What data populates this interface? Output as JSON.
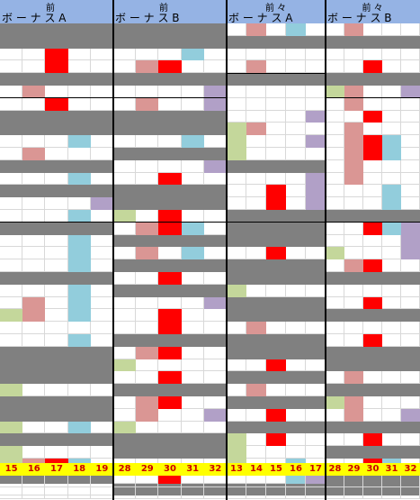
{
  "colors": {
    "header": "#95b3e4",
    "blank": "#ffffff",
    "gray": "#808080",
    "red": "#ff0000",
    "pink": "#da9694",
    "blue": "#92cddc",
    "purple": "#b1a0c7",
    "green": "#c4d79b",
    "yellow": "#ffff00",
    "grid": "#d8d8d8"
  },
  "panels": [
    {
      "top_label": "前",
      "bottom_label": "ボ ー ナ ス  A",
      "numbers": [
        "15",
        "16",
        "17",
        "18",
        "19"
      ]
    },
    {
      "top_label": "前",
      "bottom_label": "ボ ー ナ ス  B",
      "numbers": [
        "28",
        "29",
        "30",
        "31",
        "32"
      ]
    },
    {
      "top_label": "前 々",
      "bottom_label": "ボ ー ナ ス  A",
      "numbers": [
        "13",
        "14",
        "15",
        "16",
        "17"
      ]
    },
    {
      "top_label": "前 々",
      "bottom_label": "ボ ー ナ ス  B",
      "numbers": [
        "28",
        "29",
        "30",
        "31",
        "32"
      ]
    }
  ],
  "grid": [
    [
      "GGGGG",
      "GGGGG",
      "WPWBW",
      "WPWWW"
    ],
    [
      "GGGGG",
      "GGGGG",
      "GGGGG",
      "GGGGG"
    ],
    [
      "WWRWW",
      "WWWBW",
      "WWWWW",
      "WWWWW"
    ],
    [
      "WWRWW",
      "WPRWW",
      "WPWWW",
      "WWRWW"
    ],
    [
      "GGGGG",
      "GGGGG",
      "GGGGG",
      "GGGGG"
    ],
    [
      "WPWWW",
      "WWWWU",
      "WWWWW",
      "NPWWU"
    ],
    [
      "WWRWW",
      "WPWWU",
      "WWWWW",
      "WPWWW"
    ],
    [
      "GGGGG",
      "GGGGG",
      "WWWWU",
      "WWRWW"
    ],
    [
      "GGGGG",
      "GGGGG",
      "NPWWW",
      "WPWWW"
    ],
    [
      "WWWBW",
      "WWWBW",
      "NWWWU",
      "WPRBW"
    ],
    [
      "WPWWW",
      "GGGGG",
      "NWWWW",
      "WPRBW"
    ],
    [
      "GGGGG",
      "WWWWU",
      "GGGGG",
      "WPWWW"
    ],
    [
      "WWWBW",
      "WWRWW",
      "WWWWU",
      "WPWWW"
    ],
    [
      "GGGGG",
      "GGGGG",
      "WWRWU",
      "WWWBW"
    ],
    [
      "WWWWU",
      "GGGGG",
      "WWRWU",
      "WWWBW"
    ],
    [
      "WWWBW",
      "NWRWW",
      "GGGGG",
      "GGGGG"
    ],
    [
      "GGGGG",
      "WPRBW",
      "GGGGG",
      "WWRBU"
    ],
    [
      "WWWBW",
      "GGGGG",
      "GGGGG",
      "WWWWU"
    ],
    [
      "WWWBW",
      "WPWBW",
      "WWRWW",
      "NWWWU"
    ],
    [
      "WWWBW",
      "GGGGG",
      "GGGGG",
      "WPRWW"
    ],
    [
      "GGGGG",
      "WWRWW",
      "GGGGG",
      "GGGGG"
    ],
    [
      "WWWBW",
      "GGGGG",
      "NWWWW",
      "WWWWW"
    ],
    [
      "WPWBW",
      "WWWWU",
      "GGGGG",
      "WWRWW"
    ],
    [
      "NPWBW",
      "WWRWW",
      "GGGGG",
      "GGGGG"
    ],
    [
      "WWWWW",
      "WWRWW",
      "WPWWW",
      "WWWWW"
    ],
    [
      "WWWBW",
      "GGGGG",
      "GGGGG",
      "WWRWW"
    ],
    [
      "GGGGG",
      "WPRWW",
      "GGGGG",
      "GGGGG"
    ],
    [
      "GGGGG",
      "NWWWW",
      "WWRWW",
      "GGGGG"
    ],
    [
      "GGGGG",
      "WWRWW",
      "GGGGG",
      "WPWWW"
    ],
    [
      "NWWWW",
      "GGGGG",
      "WPWWW",
      "GGGGG"
    ],
    [
      "GGGGG",
      "WPRWW",
      "GGGGG",
      "NPWWW"
    ],
    [
      "GGGGG",
      "WPWWU",
      "WWRWW",
      "WPWWU"
    ],
    [
      "NWWBW",
      "NWWWW",
      "GGGGG",
      "GGGGG"
    ],
    [
      "GGGGG",
      "GGGGG",
      "NWRWW",
      "WWRWW"
    ],
    [
      "NWWWW",
      "GGGGG",
      "NWWWW",
      "GGGGG"
    ],
    [
      "NPRBW",
      "WWWWW",
      "NWWBW",
      "WWRBW"
    ],
    [
      "GGGGG",
      "WWRWW",
      "WWWBU",
      "GGGGG"
    ],
    [
      "WWWWW",
      "GGGGG",
      "GGGGG",
      "GGGGG"
    ]
  ],
  "dividers": [
    {
      "panel": 0,
      "after_row": 5
    },
    {
      "panel": 1,
      "after_row": 5
    },
    {
      "panel": 2,
      "after_row": 3
    },
    {
      "panel": 3,
      "after_row": 5
    },
    {
      "panel": 0,
      "after_row": 15
    },
    {
      "panel": 1,
      "after_row": 15
    },
    {
      "panel": 2,
      "after_row": 15
    },
    {
      "panel": 3,
      "after_row": 15
    }
  ]
}
